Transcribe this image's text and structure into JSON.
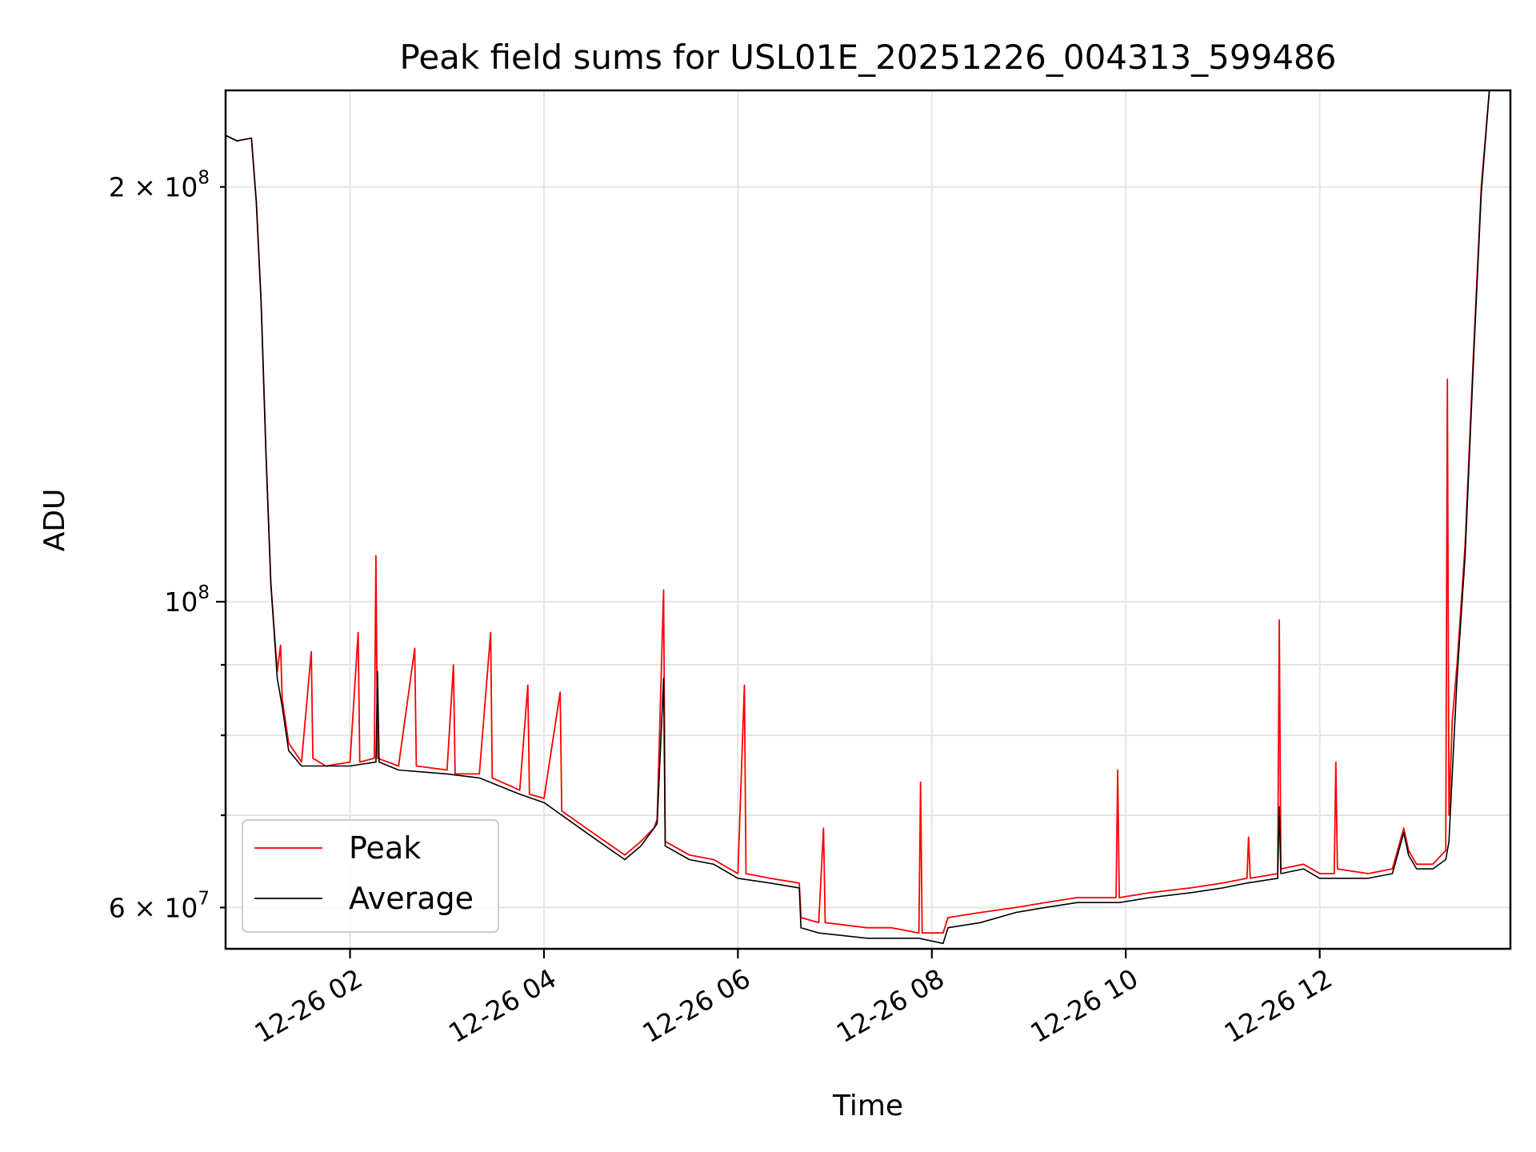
{
  "chart_data": {
    "type": "line",
    "title": "Peak field sums for USL01E_20251226_004313_599486",
    "xlabel": "Time",
    "ylabel": "ADU",
    "yscale": "log",
    "grid": true,
    "legend_position": "lower-left",
    "xlim": [
      "2025-12-26 00:43",
      "2025-12-26 13:58"
    ],
    "ylim": [
      56000000,
      235000000
    ],
    "x_ticks": [
      {
        "time": "2025-12-26 02:00",
        "label": "12-26 02"
      },
      {
        "time": "2025-12-26 04:00",
        "label": "12-26 04"
      },
      {
        "time": "2025-12-26 06:00",
        "label": "12-26 06"
      },
      {
        "time": "2025-12-26 08:00",
        "label": "12-26 08"
      },
      {
        "time": "2025-12-26 10:00",
        "label": "12-26 10"
      },
      {
        "time": "2025-12-26 12:00",
        "label": "12-26 12"
      }
    ],
    "y_ticks": [
      {
        "value": 60000000,
        "mantissa": "6",
        "exp": "7",
        "major": false
      },
      {
        "value": 100000000,
        "mantissa": "",
        "exp": "8",
        "major": true
      },
      {
        "value": 200000000,
        "mantissa": "2",
        "exp": "8",
        "major": false
      }
    ],
    "y_minor_grid": [
      70000000,
      80000000,
      90000000
    ],
    "series": [
      {
        "name": "Peak",
        "color": "#ff0000",
        "points": [
          [
            "2025-12-26 00:43",
            218000000
          ],
          [
            "2025-12-26 00:50",
            216000000
          ],
          [
            "2025-12-26 00:59",
            217000000
          ],
          [
            "2025-12-26 01:02",
            195000000
          ],
          [
            "2025-12-26 01:05",
            165000000
          ],
          [
            "2025-12-26 01:08",
            128000000
          ],
          [
            "2025-12-26 01:11",
            103000000
          ],
          [
            "2025-12-26 01:15",
            89000000
          ],
          [
            "2025-12-26 01:17",
            93000000
          ],
          [
            "2025-12-26 01:18",
            85000000
          ],
          [
            "2025-12-26 01:22",
            79000000
          ],
          [
            "2025-12-26 01:30",
            76500000
          ],
          [
            "2025-12-26 01:36",
            92000000
          ],
          [
            "2025-12-26 01:37",
            77000000
          ],
          [
            "2025-12-26 01:45",
            76000000
          ],
          [
            "2025-12-26 02:00",
            76500000
          ],
          [
            "2025-12-26 02:05",
            95000000
          ],
          [
            "2025-12-26 02:06",
            76500000
          ],
          [
            "2025-12-26 02:15",
            77000000
          ],
          [
            "2025-12-26 02:16",
            108000000
          ],
          [
            "2025-12-26 02:17",
            77000000
          ],
          [
            "2025-12-26 02:30",
            76000000
          ],
          [
            "2025-12-26 02:40",
            92500000
          ],
          [
            "2025-12-26 02:41",
            76000000
          ],
          [
            "2025-12-26 03:00",
            75500000
          ],
          [
            "2025-12-26 03:04",
            90000000
          ],
          [
            "2025-12-26 03:05",
            75000000
          ],
          [
            "2025-12-26 03:20",
            75000000
          ],
          [
            "2025-12-26 03:27",
            95000000
          ],
          [
            "2025-12-26 03:28",
            74500000
          ],
          [
            "2025-12-26 03:45",
            73000000
          ],
          [
            "2025-12-26 03:50",
            87000000
          ],
          [
            "2025-12-26 03:51",
            72500000
          ],
          [
            "2025-12-26 04:00",
            72000000
          ],
          [
            "2025-12-26 04:10",
            86000000
          ],
          [
            "2025-12-26 04:11",
            70500000
          ],
          [
            "2025-12-26 04:30",
            68000000
          ],
          [
            "2025-12-26 04:50",
            65500000
          ],
          [
            "2025-12-26 05:00",
            67000000
          ],
          [
            "2025-12-26 05:08",
            68500000
          ],
          [
            "2025-12-26 05:10",
            69500000
          ],
          [
            "2025-12-26 05:14",
            102000000
          ],
          [
            "2025-12-26 05:15",
            67000000
          ],
          [
            "2025-12-26 05:30",
            65500000
          ],
          [
            "2025-12-26 05:45",
            65000000
          ],
          [
            "2025-12-26 06:00",
            63500000
          ],
          [
            "2025-12-26 06:04",
            87000000
          ],
          [
            "2025-12-26 06:05",
            63500000
          ],
          [
            "2025-12-26 06:20",
            63000000
          ],
          [
            "2025-12-26 06:38",
            62500000
          ],
          [
            "2025-12-26 06:39",
            59000000
          ],
          [
            "2025-12-26 06:50",
            58500000
          ],
          [
            "2025-12-26 06:53",
            68500000
          ],
          [
            "2025-12-26 06:54",
            58500000
          ],
          [
            "2025-12-26 07:20",
            58000000
          ],
          [
            "2025-12-26 07:35",
            58000000
          ],
          [
            "2025-12-26 07:52",
            57500000
          ],
          [
            "2025-12-26 07:53",
            74000000
          ],
          [
            "2025-12-26 07:54",
            57500000
          ],
          [
            "2025-12-26 08:07",
            57500000
          ],
          [
            "2025-12-26 08:10",
            59000000
          ],
          [
            "2025-12-26 08:30",
            59500000
          ],
          [
            "2025-12-26 08:52",
            60000000
          ],
          [
            "2025-12-26 09:10",
            60500000
          ],
          [
            "2025-12-26 09:30",
            61000000
          ],
          [
            "2025-12-26 09:54",
            61000000
          ],
          [
            "2025-12-26 09:55",
            75500000
          ],
          [
            "2025-12-26 09:56",
            61000000
          ],
          [
            "2025-12-26 10:15",
            61500000
          ],
          [
            "2025-12-26 10:40",
            62000000
          ],
          [
            "2025-12-26 11:00",
            62500000
          ],
          [
            "2025-12-26 11:15",
            63000000
          ],
          [
            "2025-12-26 11:16",
            67500000
          ],
          [
            "2025-12-26 11:17",
            63000000
          ],
          [
            "2025-12-26 11:34",
            63500000
          ],
          [
            "2025-12-26 11:35",
            97000000
          ],
          [
            "2025-12-26 11:36",
            64000000
          ],
          [
            "2025-12-26 11:50",
            64500000
          ],
          [
            "2025-12-26 12:00",
            63500000
          ],
          [
            "2025-12-26 12:09",
            63500000
          ],
          [
            "2025-12-26 12:10",
            76500000
          ],
          [
            "2025-12-26 12:11",
            64000000
          ],
          [
            "2025-12-26 12:30",
            63500000
          ],
          [
            "2025-12-26 12:45",
            64000000
          ],
          [
            "2025-12-26 12:52",
            68500000
          ],
          [
            "2025-12-26 12:55",
            66000000
          ],
          [
            "2025-12-26 13:00",
            64500000
          ],
          [
            "2025-12-26 13:10",
            64500000
          ],
          [
            "2025-12-26 13:18",
            66000000
          ],
          [
            "2025-12-26 13:19",
            145000000
          ],
          [
            "2025-12-26 13:20",
            70000000
          ],
          [
            "2025-12-26 13:22",
            82000000
          ],
          [
            "2025-12-26 13:25",
            90000000
          ],
          [
            "2025-12-26 13:30",
            110000000
          ],
          [
            "2025-12-26 13:35",
            150000000
          ],
          [
            "2025-12-26 13:40",
            200000000
          ],
          [
            "2025-12-26 13:45",
            235000000
          ]
        ]
      },
      {
        "name": "Average",
        "color": "#000000",
        "points": [
          [
            "2025-12-26 00:43",
            218000000
          ],
          [
            "2025-12-26 00:50",
            216000000
          ],
          [
            "2025-12-26 00:59",
            217000000
          ],
          [
            "2025-12-26 01:02",
            195000000
          ],
          [
            "2025-12-26 01:05",
            165000000
          ],
          [
            "2025-12-26 01:08",
            128000000
          ],
          [
            "2025-12-26 01:11",
            103000000
          ],
          [
            "2025-12-26 01:15",
            88000000
          ],
          [
            "2025-12-26 01:18",
            84000000
          ],
          [
            "2025-12-26 01:22",
            78000000
          ],
          [
            "2025-12-26 01:30",
            76000000
          ],
          [
            "2025-12-26 02:00",
            76000000
          ],
          [
            "2025-12-26 02:16",
            76500000
          ],
          [
            "2025-12-26 02:17",
            89000000
          ],
          [
            "2025-12-26 02:18",
            76500000
          ],
          [
            "2025-12-26 02:30",
            75500000
          ],
          [
            "2025-12-26 03:00",
            75000000
          ],
          [
            "2025-12-26 03:20",
            74500000
          ],
          [
            "2025-12-26 03:45",
            72500000
          ],
          [
            "2025-12-26 04:00",
            71500000
          ],
          [
            "2025-12-26 04:30",
            67500000
          ],
          [
            "2025-12-26 04:50",
            65000000
          ],
          [
            "2025-12-26 05:00",
            66500000
          ],
          [
            "2025-12-26 05:10",
            69000000
          ],
          [
            "2025-12-26 05:14",
            88000000
          ],
          [
            "2025-12-26 05:15",
            66500000
          ],
          [
            "2025-12-26 05:30",
            65000000
          ],
          [
            "2025-12-26 05:45",
            64500000
          ],
          [
            "2025-12-26 06:00",
            63000000
          ],
          [
            "2025-12-26 06:20",
            62500000
          ],
          [
            "2025-12-26 06:38",
            62000000
          ],
          [
            "2025-12-26 06:39",
            58000000
          ],
          [
            "2025-12-26 06:50",
            57500000
          ],
          [
            "2025-12-26 07:20",
            57000000
          ],
          [
            "2025-12-26 07:52",
            57000000
          ],
          [
            "2025-12-26 08:07",
            56500000
          ],
          [
            "2025-12-26 08:10",
            58000000
          ],
          [
            "2025-12-26 08:30",
            58500000
          ],
          [
            "2025-12-26 08:52",
            59500000
          ],
          [
            "2025-12-26 09:10",
            60000000
          ],
          [
            "2025-12-26 09:30",
            60500000
          ],
          [
            "2025-12-26 09:56",
            60500000
          ],
          [
            "2025-12-26 10:15",
            61000000
          ],
          [
            "2025-12-26 10:40",
            61500000
          ],
          [
            "2025-12-26 11:00",
            62000000
          ],
          [
            "2025-12-26 11:15",
            62500000
          ],
          [
            "2025-12-26 11:34",
            63000000
          ],
          [
            "2025-12-26 11:35",
            71000000
          ],
          [
            "2025-12-26 11:36",
            63500000
          ],
          [
            "2025-12-26 11:50",
            64000000
          ],
          [
            "2025-12-26 12:00",
            63000000
          ],
          [
            "2025-12-26 12:30",
            63000000
          ],
          [
            "2025-12-26 12:45",
            63500000
          ],
          [
            "2025-12-26 12:52",
            68000000
          ],
          [
            "2025-12-26 12:55",
            65500000
          ],
          [
            "2025-12-26 13:00",
            64000000
          ],
          [
            "2025-12-26 13:10",
            64000000
          ],
          [
            "2025-12-26 13:18",
            65000000
          ],
          [
            "2025-12-26 13:20",
            67000000
          ],
          [
            "2025-12-26 13:22",
            75000000
          ],
          [
            "2025-12-26 13:25",
            88000000
          ],
          [
            "2025-12-26 13:30",
            108000000
          ],
          [
            "2025-12-26 13:35",
            148000000
          ],
          [
            "2025-12-26 13:40",
            198000000
          ],
          [
            "2025-12-26 13:45",
            235000000
          ]
        ]
      }
    ]
  }
}
